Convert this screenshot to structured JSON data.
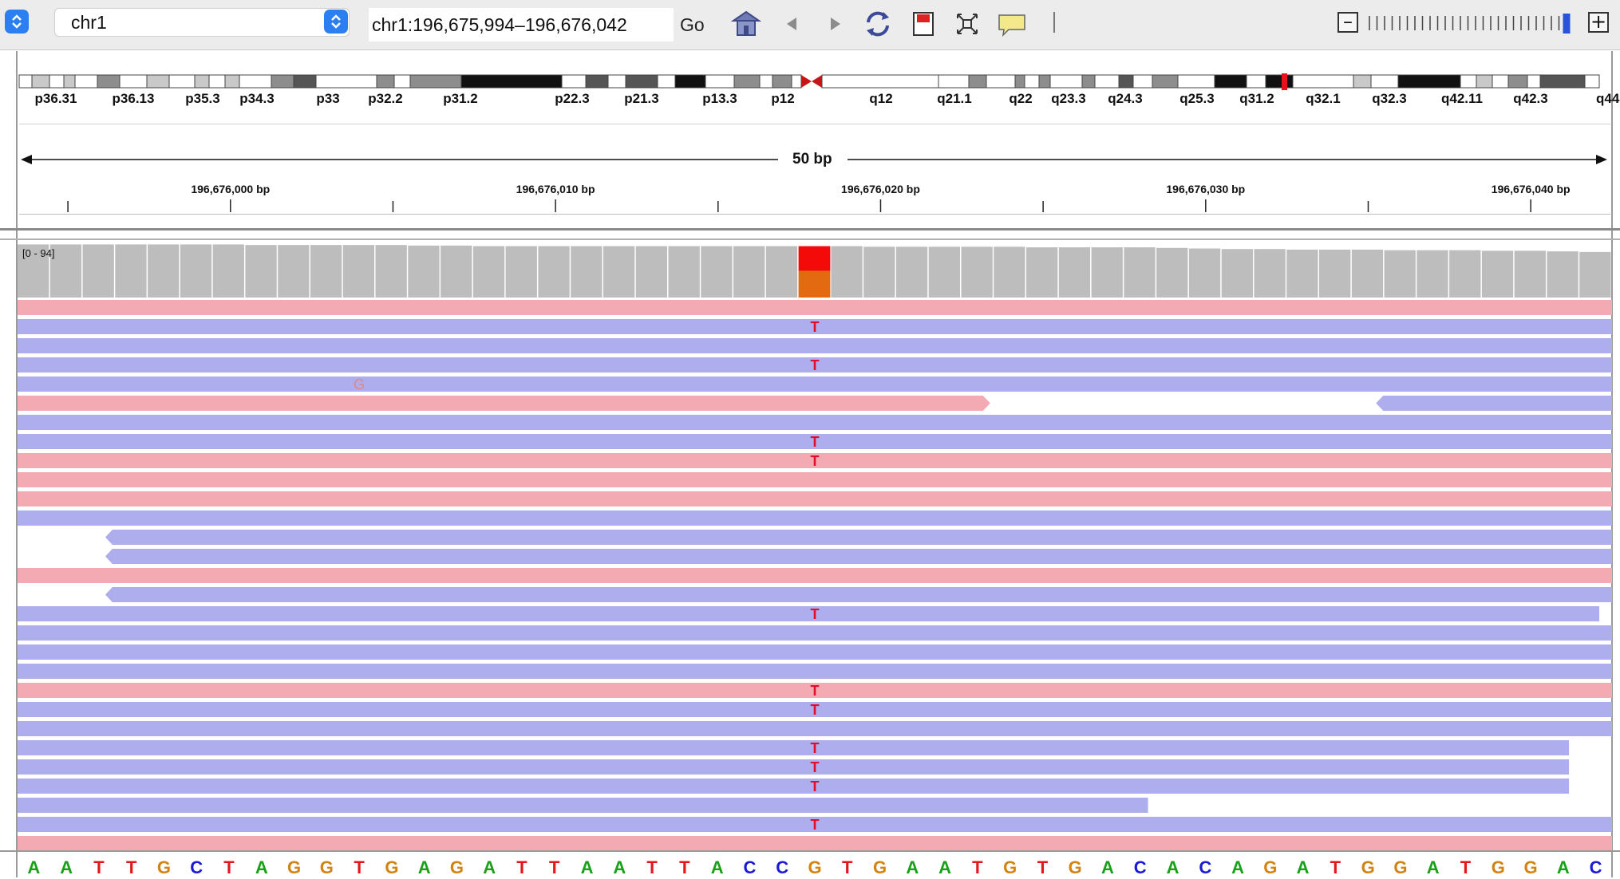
{
  "toolbar": {
    "genome_stepper_icon": "up-down-stepper-icon",
    "chromosome_value": "chr1",
    "locus_value": "chr1:196,675,994–196,676,042",
    "go_label": "Go",
    "icons": [
      "home-icon",
      "back-arrow-icon",
      "forward-arrow-icon",
      "refresh-icon",
      "region-of-interest-icon",
      "resize-to-window-icon",
      "popup-info-icon"
    ],
    "zoom_minus_label": "–",
    "zoom_plus_label": "+",
    "zoom_level_fraction": 0.97
  },
  "ideogram": {
    "bands": [
      "p36.31",
      "p36.13",
      "p35.3",
      "p34.3",
      "p33",
      "p32.2",
      "p31.2",
      "p22.3",
      "p21.3",
      "p13.3",
      "p12",
      "q12",
      "q21.1",
      "q22",
      "q23.3",
      "q24.3",
      "q25.3",
      "q31.2",
      "q32.1",
      "q32.3",
      "q42.11",
      "q42.3",
      "q44"
    ],
    "current_position_color": "#e8101a"
  },
  "ruler": {
    "span_label": "50 bp",
    "ticks": [
      "196,676,000 bp",
      "196,676,010 bp",
      "196,676,020 bp",
      "196,676,030 bp",
      "196,676,040 bp"
    ],
    "view_start": 196675994,
    "view_end": 196676042
  },
  "coverage": {
    "range_label": "[0 - 94]",
    "max": 94,
    "values": [
      92,
      92,
      92,
      92,
      92,
      92,
      92,
      91,
      91,
      91,
      91,
      91,
      90,
      90,
      89,
      89,
      89,
      89,
      89,
      89,
      89,
      89,
      89,
      89,
      89,
      89,
      88,
      88,
      88,
      88,
      88,
      87,
      87,
      87,
      87,
      86,
      85,
      84,
      84,
      83,
      83,
      83,
      82,
      82,
      82,
      81,
      81,
      80,
      79
    ],
    "highlight_index": 24,
    "highlight_colors": {
      "alt": "#f50a0a",
      "ref": "#e36a10"
    }
  },
  "colors": {
    "forward_read": "#f4aab2",
    "reverse_read": "#aeaeee",
    "coverage": "#bdbdbd",
    "mismatch": "#e0102a",
    "base_A": "#19a019",
    "base_C": "#1a1ad6",
    "base_G": "#d3840f",
    "base_T": "#e01818"
  },
  "reads": [
    {
      "strand": "+",
      "start": 0,
      "end": 1.0
    },
    {
      "strand": "-",
      "start": 0,
      "end": 1.0,
      "mismatch": "T"
    },
    {
      "strand": "-",
      "start": 0,
      "end": 1.0
    },
    {
      "strand": "-",
      "start": 0,
      "end": 1.0,
      "mismatch": "T"
    },
    {
      "strand": "-",
      "start": 0,
      "end": 1.0,
      "mismatch_other": {
        "base": "G",
        "index": 10
      }
    },
    {
      "strand": "+",
      "start": 0,
      "end": 0.61,
      "second": {
        "strand": "-",
        "start": 0.852,
        "end": 1.0
      }
    },
    {
      "strand": "-",
      "start": 0,
      "end": 1.0
    },
    {
      "strand": "-",
      "start": 0,
      "end": 1.0,
      "mismatch": "T"
    },
    {
      "strand": "+",
      "start": 0,
      "end": 1.0,
      "mismatch": "T"
    },
    {
      "strand": "+",
      "start": 0,
      "end": 1.0
    },
    {
      "strand": "+",
      "start": 0,
      "end": 1.0
    },
    {
      "strand": "-",
      "start": 0,
      "end": 1.0
    },
    {
      "strand": "-",
      "start": 0.055,
      "end": 1.0
    },
    {
      "strand": "-",
      "start": 0.055,
      "end": 1.0
    },
    {
      "strand": "+",
      "start": 0,
      "end": 1.0
    },
    {
      "strand": "-",
      "start": 0.055,
      "end": 1.0
    },
    {
      "strand": "-",
      "start": 0,
      "end": 0.992,
      "mismatch": "T"
    },
    {
      "strand": "-",
      "start": 0,
      "end": 1.0
    },
    {
      "strand": "-",
      "start": 0,
      "end": 1.0
    },
    {
      "strand": "-",
      "start": 0,
      "end": 1.0
    },
    {
      "strand": "+",
      "start": 0,
      "end": 1.0,
      "mismatch": "T"
    },
    {
      "strand": "-",
      "start": 0,
      "end": 1.0,
      "mismatch": "T"
    },
    {
      "strand": "-",
      "start": 0,
      "end": 1.0
    },
    {
      "strand": "-",
      "start": 0,
      "end": 0.973,
      "mismatch": "T"
    },
    {
      "strand": "-",
      "start": 0,
      "end": 0.973,
      "mismatch": "T"
    },
    {
      "strand": "-",
      "start": 0,
      "end": 0.973,
      "mismatch": "T"
    },
    {
      "strand": "-",
      "start": 0,
      "end": 0.709
    },
    {
      "strand": "-",
      "start": 0,
      "end": 1.0,
      "mismatch": "T"
    },
    {
      "strand": "+",
      "start": 0,
      "end": 1.0
    }
  ],
  "sequence": [
    "A",
    "A",
    "T",
    "T",
    "G",
    "C",
    "T",
    "A",
    "G",
    "G",
    "T",
    "G",
    "A",
    "G",
    "A",
    "T",
    "T",
    "A",
    "A",
    "T",
    "T",
    "A",
    "C",
    "C",
    "G",
    "T",
    "G",
    "A",
    "A",
    "T",
    "G",
    "T",
    "G",
    "A",
    "C",
    "A",
    "C",
    "A",
    "G",
    "A",
    "T",
    "G",
    "G",
    "A",
    "T",
    "G",
    "G",
    "A",
    "C"
  ]
}
